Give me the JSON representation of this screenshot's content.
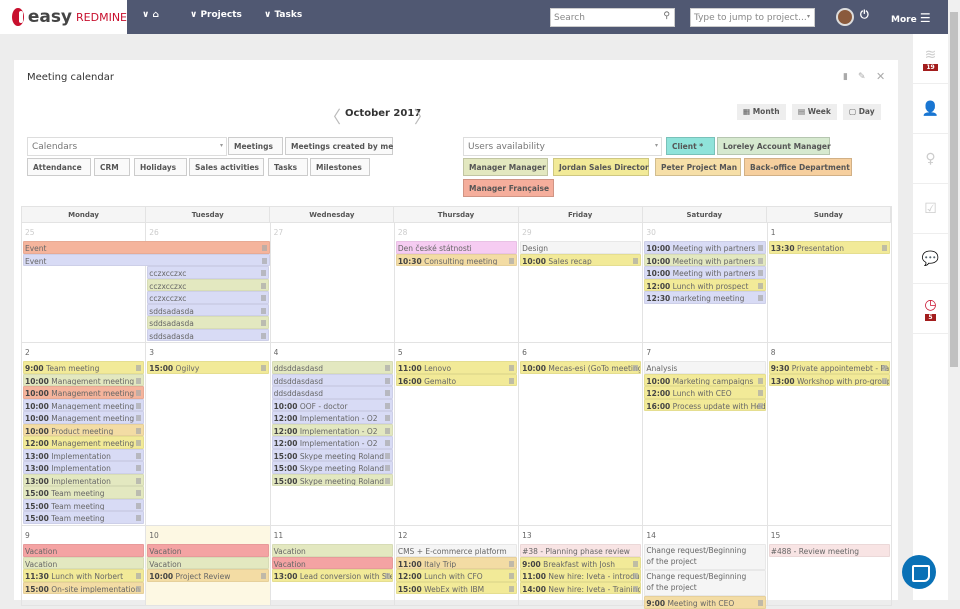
{
  "header": {
    "logo_text": "easy",
    "logo_sub": "REDMINE",
    "nav": [
      "Projects",
      "Tasks"
    ],
    "search_placeholder": "Search",
    "jump_placeholder": "Type to jump to project...",
    "more": "More"
  },
  "sidebar": {
    "activity_badge": "19",
    "reminder_badge": "5"
  },
  "panel": {
    "title": "Meeting calendar",
    "month": "October 2017",
    "views": [
      "Month",
      "Week",
      "Day"
    ],
    "calendars_placeholder": "Calendars",
    "calendar_tags": [
      "Meetings",
      "Meetings created by me",
      "Attendance",
      "CRM",
      "Holidays",
      "Sales activities",
      "Tasks",
      "Milestones"
    ],
    "users_placeholder": "Users availability",
    "user_tags": [
      {
        "label": "Client *",
        "color": "#8fe3da"
      },
      {
        "label": "Loreley Account Manager",
        "color": "#d6e9cf"
      },
      {
        "label": "Manager Manager",
        "color": "#e3e8c0"
      },
      {
        "label": "Jordan Sales Director",
        "color": "#f2ea98"
      },
      {
        "label": "Peter Project Man",
        "color": "#f6dfa8"
      },
      {
        "label": "Back-office Department",
        "color": "#f6cf9e"
      },
      {
        "label": "Manager Française",
        "color": "#f5ae9c"
      }
    ]
  },
  "colors": {
    "blue": "#d8dbf5",
    "green": "#e3e8c0",
    "yellow": "#f2ea98",
    "salmon": "#f5b49c",
    "tan": "#f3dca4",
    "pink": "#f6ccf2",
    "gray": "#f5f5f5",
    "red": "#f4a3a3",
    "rose": "#f8e4e4"
  },
  "weekdays": [
    "Monday",
    "Tuesday",
    "Wednesday",
    "Thursday",
    "Friday",
    "Saturday",
    "Sunday"
  ],
  "weeks": [
    {
      "days": [
        {
          "date": "25",
          "other": true,
          "events": [
            {
              "title": "Event",
              "color": "salmon",
              "span": 2
            },
            {
              "title": "Event",
              "color": "blue",
              "span": 2
            }
          ]
        },
        {
          "date": "26",
          "other": true,
          "events": [
            {
              "title": "cczxcczxc",
              "color": "blue"
            },
            {
              "title": "cczxcczxc",
              "color": "green"
            },
            {
              "title": "cczxcczxc",
              "color": "blue"
            },
            {
              "title": "sddsadasda",
              "color": "blue"
            },
            {
              "title": "sddsadasda",
              "color": "green"
            },
            {
              "title": "sddsadasda",
              "color": "blue"
            }
          ]
        },
        {
          "date": "27",
          "other": true,
          "events": []
        },
        {
          "date": "28",
          "other": true,
          "events": [
            {
              "title": "Den české státnosti",
              "color": "pink",
              "notrash": true
            },
            {
              "time": "10:30",
              "title": "Consulting meeting",
              "color": "tan"
            }
          ]
        },
        {
          "date": "29",
          "other": true,
          "events": [
            {
              "title": "Design",
              "color": "gray",
              "notrash": true
            },
            {
              "time": "10:00",
              "title": "Sales recap",
              "color": "yellow"
            }
          ]
        },
        {
          "date": "30",
          "other": true,
          "events": [
            {
              "time": "10:00",
              "title": "Meeting with partners",
              "color": "blue"
            },
            {
              "time": "10:00",
              "title": "Meeting with partners",
              "color": "green"
            },
            {
              "time": "10:00",
              "title": "Meeting with partners",
              "color": "blue"
            },
            {
              "time": "12:00",
              "title": "Lunch with prospect",
              "color": "yellow"
            },
            {
              "time": "12:30",
              "title": "marketing meeting",
              "color": "blue"
            }
          ]
        },
        {
          "date": "1",
          "events": [
            {
              "time": "13:30",
              "title": "Presentation",
              "color": "yellow"
            }
          ]
        }
      ]
    },
    {
      "days": [
        {
          "date": "2",
          "events": [
            {
              "time": "9:00",
              "title": "Team meeting",
              "color": "yellow"
            },
            {
              "time": "10:00",
              "title": "Management meeting",
              "color": "green"
            },
            {
              "time": "10:00",
              "title": "Management meeting",
              "color": "salmon"
            },
            {
              "time": "10:00",
              "title": "Management meeting",
              "color": "blue"
            },
            {
              "time": "10:00",
              "title": "Management meeting",
              "color": "blue"
            },
            {
              "time": "10:00",
              "title": "Product meeting",
              "color": "tan"
            },
            {
              "time": "12:00",
              "title": "Management meeting",
              "color": "yellow"
            },
            {
              "time": "13:00",
              "title": "Implementation",
              "color": "blue"
            },
            {
              "time": "13:00",
              "title": "Implementation",
              "color": "blue"
            },
            {
              "time": "13:00",
              "title": "Implementation",
              "color": "green"
            },
            {
              "time": "15:00",
              "title": "Team meeting",
              "color": "green"
            },
            {
              "time": "15:00",
              "title": "Team meeting",
              "color": "blue"
            },
            {
              "time": "15:00",
              "title": "Team meeting",
              "color": "blue"
            }
          ]
        },
        {
          "date": "3",
          "events": [
            {
              "time": "15:00",
              "title": "Ogilvy",
              "color": "yellow"
            }
          ]
        },
        {
          "date": "4",
          "events": [
            {
              "title": "ddsddasdasd",
              "color": "green"
            },
            {
              "title": "ddsddasdasd",
              "color": "blue"
            },
            {
              "title": "ddsddasdasd",
              "color": "blue"
            },
            {
              "time": "10:00",
              "title": "OOF - doctor",
              "color": "blue"
            },
            {
              "time": "12:00",
              "title": "Implementation - O2",
              "color": "blue"
            },
            {
              "time": "12:00",
              "title": "Implementation - O2",
              "color": "green"
            },
            {
              "time": "12:00",
              "title": "Implementation - O2",
              "color": "blue"
            },
            {
              "time": "15:00",
              "title": "Skype meeting Roland",
              "color": "blue"
            },
            {
              "time": "15:00",
              "title": "Skype meeting Roland",
              "color": "blue"
            },
            {
              "time": "15:00",
              "title": "Skype meeting Roland",
              "color": "green"
            }
          ]
        },
        {
          "date": "5",
          "events": [
            {
              "time": "11:00",
              "title": "Lenovo",
              "color": "yellow"
            },
            {
              "time": "16:00",
              "title": "Gemalto",
              "color": "yellow"
            }
          ]
        },
        {
          "date": "6",
          "events": [
            {
              "time": "10:00",
              "title": "Mecas-esi (GoTo meeting)",
              "color": "yellow"
            }
          ]
        },
        {
          "date": "7",
          "events": [
            {
              "title": "Analysis",
              "color": "gray",
              "notrash": true
            },
            {
              "time": "10:00",
              "title": "Marketing campaigns",
              "color": "yellow"
            },
            {
              "time": "12:00",
              "title": "Lunch with CEO",
              "color": "yellow"
            },
            {
              "time": "16:00",
              "title": "Process update with Hedviga",
              "color": "yellow"
            }
          ]
        },
        {
          "date": "8",
          "events": [
            {
              "time": "9:30",
              "title": "Private appointemebt - Pavel",
              "color": "yellow"
            },
            {
              "time": "13:00",
              "title": "Workshop with pro-group",
              "color": "yellow"
            }
          ]
        }
      ]
    },
    {
      "days": [
        {
          "date": "9",
          "events": [
            {
              "title": "Vacation",
              "color": "red",
              "notrash": true
            },
            {
              "title": "Vacation",
              "color": "green",
              "notrash": true
            },
            {
              "time": "11:30",
              "title": "Lunch with Norbert",
              "color": "yellow"
            },
            {
              "time": "15:00",
              "title": "On-site implementation",
              "color": "tan"
            }
          ]
        },
        {
          "date": "10",
          "today": true,
          "events": [
            {
              "title": "Vacation",
              "color": "red",
              "notrash": true
            },
            {
              "title": "Vacation",
              "color": "green",
              "notrash": true
            },
            {
              "time": "10:00",
              "title": "Project Review",
              "color": "tan"
            }
          ]
        },
        {
          "date": "11",
          "events": [
            {
              "title": "Vacation",
              "color": "green",
              "notrash": true
            },
            {
              "title": "Vacation",
              "color": "red",
              "notrash": true
            },
            {
              "time": "13:00",
              "title": "Lead conversion with Steve",
              "color": "yellow"
            }
          ]
        },
        {
          "date": "12",
          "events": [
            {
              "title": "CMS + E-commerce platform",
              "color": "gray",
              "notrash": true
            },
            {
              "time": "11:00",
              "title": "Italy Trip",
              "color": "tan"
            },
            {
              "time": "12:00",
              "title": "Lunch with CFO",
              "color": "yellow"
            },
            {
              "time": "15:00",
              "title": "WebEx with IBM",
              "color": "yellow"
            }
          ]
        },
        {
          "date": "13",
          "events": [
            {
              "title": "#38 - Planning phase review",
              "color": "rose",
              "notrash": true
            },
            {
              "time": "9:00",
              "title": "Breakfast with Josh",
              "color": "yellow"
            },
            {
              "time": "11:00",
              "title": "New hire: Iveta - introduction",
              "color": "yellow"
            },
            {
              "time": "14:00",
              "title": "New hire: Iveta - Training",
              "color": "yellow"
            }
          ]
        },
        {
          "date": "14",
          "events": [
            {
              "title": "Change request/Beginning of the project",
              "color": "gray",
              "notrash": true,
              "wrap": true
            },
            {
              "title": "Change request/Beginning of the project",
              "color": "gray",
              "notrash": true,
              "wrap": true
            },
            {
              "time": "9:00",
              "title": "Meeting with CEO",
              "color": "tan"
            }
          ]
        },
        {
          "date": "15",
          "events": [
            {
              "title": "#488 - Review meeting",
              "color": "rose",
              "notrash": true
            }
          ]
        }
      ]
    }
  ]
}
